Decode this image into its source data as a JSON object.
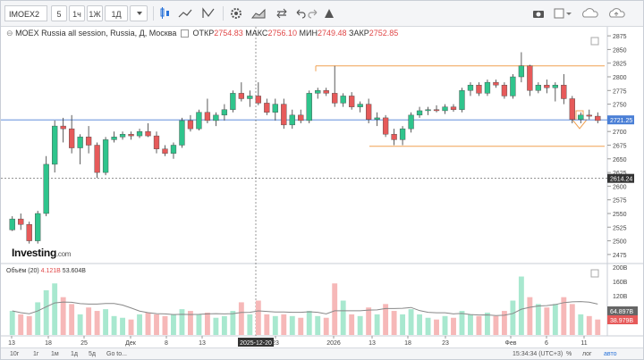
{
  "toolbar": {
    "symbol": "IMOEX2",
    "intervals": [
      "5",
      "1ч",
      "1Ж",
      "1Д"
    ]
  },
  "legend": {
    "title": "MOEX Russia all session, Russia, Д, Москва",
    "open_label": "ОТКР",
    "open": "2754.83",
    "high_label": "МАКС",
    "high": "2756.10",
    "low_label": "МИН",
    "low": "2749.48",
    "close_label": "ЗАКР",
    "close": "2752.85"
  },
  "volume_legend": {
    "label": "Объём (20)",
    "value1": "4.121B",
    "value2": "53.604B"
  },
  "logo": {
    "name": "Investing",
    "suffix": ".com"
  },
  "bottom": {
    "ranges": [
      "10г",
      "1г",
      "1м",
      "1д",
      "5д"
    ],
    "goto": "Go to...",
    "time": "15:34:34 (UTC+3)",
    "percent": "%",
    "log": "лог",
    "auto": "авто"
  },
  "colors": {
    "up": "#2fc48c",
    "down": "#e65a5a",
    "price_line": "#4a7fd6",
    "level": "#f0a050"
  },
  "chart_data": {
    "type": "candlestick",
    "y_ticks": [
      2475,
      2500,
      2525,
      2550,
      2575,
      2600,
      2625,
      2650,
      2675,
      2700,
      2725,
      2750,
      2775,
      2800,
      2825,
      2850,
      2875
    ],
    "ylim": [
      2465,
      2885
    ],
    "current_price": "2721.25",
    "crosshair_price": "2614.24",
    "crosshair_date": "2025-12-20",
    "levels": [
      2820,
      2673
    ],
    "x_labels": [
      "13",
      "18",
      "25",
      "Дек",
      "8",
      "13",
      "2025-12-20",
      "23",
      "2026",
      "13",
      "18",
      "23",
      "Фев",
      "6",
      "11"
    ],
    "volume_ticks": [
      "200B",
      "160B",
      "120B",
      "64.897B",
      "38.979B"
    ],
    "candles": [
      {
        "o": 2520,
        "h": 2545,
        "l": 2518,
        "c": 2540,
        "v": 70
      },
      {
        "o": 2540,
        "h": 2550,
        "l": 2520,
        "c": 2530,
        "v": 60
      },
      {
        "o": 2530,
        "h": 2535,
        "l": 2495,
        "c": 2500,
        "v": 55
      },
      {
        "o": 2500,
        "h": 2555,
        "l": 2495,
        "c": 2550,
        "v": 95
      },
      {
        "o": 2550,
        "h": 2655,
        "l": 2545,
        "c": 2640,
        "v": 130
      },
      {
        "o": 2640,
        "h": 2720,
        "l": 2625,
        "c": 2710,
        "v": 150
      },
      {
        "o": 2710,
        "h": 2725,
        "l": 2680,
        "c": 2705,
        "v": 110
      },
      {
        "o": 2705,
        "h": 2730,
        "l": 2660,
        "c": 2670,
        "v": 90
      },
      {
        "o": 2670,
        "h": 2695,
        "l": 2640,
        "c": 2690,
        "v": 60
      },
      {
        "o": 2690,
        "h": 2710,
        "l": 2660,
        "c": 2675,
        "v": 80
      },
      {
        "o": 2675,
        "h": 2680,
        "l": 2615,
        "c": 2625,
        "v": 70
      },
      {
        "o": 2625,
        "h": 2690,
        "l": 2620,
        "c": 2685,
        "v": 75
      },
      {
        "o": 2685,
        "h": 2700,
        "l": 2680,
        "c": 2690,
        "v": 55
      },
      {
        "o": 2690,
        "h": 2700,
        "l": 2685,
        "c": 2695,
        "v": 50
      },
      {
        "o": 2695,
        "h": 2700,
        "l": 2685,
        "c": 2692,
        "v": 45
      },
      {
        "o": 2692,
        "h": 2705,
        "l": 2688,
        "c": 2700,
        "v": 60
      },
      {
        "o": 2700,
        "h": 2715,
        "l": 2690,
        "c": 2692,
        "v": 65
      },
      {
        "o": 2692,
        "h": 2700,
        "l": 2660,
        "c": 2668,
        "v": 60
      },
      {
        "o": 2668,
        "h": 2675,
        "l": 2655,
        "c": 2660,
        "v": 55
      },
      {
        "o": 2660,
        "h": 2680,
        "l": 2650,
        "c": 2675,
        "v": 60
      },
      {
        "o": 2675,
        "h": 2725,
        "l": 2670,
        "c": 2720,
        "v": 75
      },
      {
        "o": 2720,
        "h": 2730,
        "l": 2700,
        "c": 2705,
        "v": 70
      },
      {
        "o": 2705,
        "h": 2740,
        "l": 2702,
        "c": 2735,
        "v": 60
      },
      {
        "o": 2735,
        "h": 2760,
        "l": 2715,
        "c": 2720,
        "v": 65
      },
      {
        "o": 2720,
        "h": 2735,
        "l": 2710,
        "c": 2730,
        "v": 50
      },
      {
        "o": 2730,
        "h": 2750,
        "l": 2720,
        "c": 2740,
        "v": 55
      },
      {
        "o": 2740,
        "h": 2775,
        "l": 2735,
        "c": 2770,
        "v": 70
      },
      {
        "o": 2770,
        "h": 2790,
        "l": 2755,
        "c": 2760,
        "v": 95
      },
      {
        "o": 2760,
        "h": 2775,
        "l": 2745,
        "c": 2765,
        "v": 60
      },
      {
        "o": 2765,
        "h": 2790,
        "l": 2748,
        "c": 2752,
        "v": 100
      },
      {
        "o": 2752,
        "h": 2760,
        "l": 2730,
        "c": 2735,
        "v": 60
      },
      {
        "o": 2735,
        "h": 2760,
        "l": 2720,
        "c": 2750,
        "v": 55
      },
      {
        "o": 2750,
        "h": 2760,
        "l": 2705,
        "c": 2712,
        "v": 60
      },
      {
        "o": 2712,
        "h": 2740,
        "l": 2705,
        "c": 2730,
        "v": 55
      },
      {
        "o": 2730,
        "h": 2740,
        "l": 2715,
        "c": 2720,
        "v": 50
      },
      {
        "o": 2720,
        "h": 2775,
        "l": 2715,
        "c": 2770,
        "v": 70
      },
      {
        "o": 2770,
        "h": 2780,
        "l": 2760,
        "c": 2775,
        "v": 55
      },
      {
        "o": 2775,
        "h": 2780,
        "l": 2765,
        "c": 2770,
        "v": 50
      },
      {
        "o": 2770,
        "h": 2820,
        "l": 2745,
        "c": 2752,
        "v": 150
      },
      {
        "o": 2752,
        "h": 2770,
        "l": 2745,
        "c": 2765,
        "v": 100
      },
      {
        "o": 2765,
        "h": 2772,
        "l": 2740,
        "c": 2745,
        "v": 60
      },
      {
        "o": 2745,
        "h": 2755,
        "l": 2735,
        "c": 2750,
        "v": 55
      },
      {
        "o": 2750,
        "h": 2760,
        "l": 2715,
        "c": 2722,
        "v": 80
      },
      {
        "o": 2722,
        "h": 2735,
        "l": 2710,
        "c": 2725,
        "v": 60
      },
      {
        "o": 2725,
        "h": 2730,
        "l": 2690,
        "c": 2695,
        "v": 90
      },
      {
        "o": 2695,
        "h": 2705,
        "l": 2675,
        "c": 2685,
        "v": 70
      },
      {
        "o": 2685,
        "h": 2710,
        "l": 2675,
        "c": 2705,
        "v": 60
      },
      {
        "o": 2705,
        "h": 2735,
        "l": 2698,
        "c": 2730,
        "v": 75
      },
      {
        "o": 2730,
        "h": 2745,
        "l": 2725,
        "c": 2738,
        "v": 60
      },
      {
        "o": 2738,
        "h": 2745,
        "l": 2730,
        "c": 2740,
        "v": 50
      },
      {
        "o": 2740,
        "h": 2748,
        "l": 2735,
        "c": 2738,
        "v": 45
      },
      {
        "o": 2738,
        "h": 2750,
        "l": 2732,
        "c": 2745,
        "v": 55
      },
      {
        "o": 2745,
        "h": 2750,
        "l": 2736,
        "c": 2740,
        "v": 50
      },
      {
        "o": 2740,
        "h": 2780,
        "l": 2735,
        "c": 2775,
        "v": 70
      },
      {
        "o": 2775,
        "h": 2790,
        "l": 2765,
        "c": 2785,
        "v": 60
      },
      {
        "o": 2785,
        "h": 2790,
        "l": 2765,
        "c": 2770,
        "v": 55
      },
      {
        "o": 2770,
        "h": 2795,
        "l": 2765,
        "c": 2790,
        "v": 65
      },
      {
        "o": 2790,
        "h": 2795,
        "l": 2780,
        "c": 2785,
        "v": 55
      },
      {
        "o": 2785,
        "h": 2790,
        "l": 2760,
        "c": 2765,
        "v": 70
      },
      {
        "o": 2765,
        "h": 2805,
        "l": 2760,
        "c": 2800,
        "v": 100
      },
      {
        "o": 2800,
        "h": 2845,
        "l": 2790,
        "c": 2820,
        "v": 170
      },
      {
        "o": 2820,
        "h": 2822,
        "l": 2765,
        "c": 2775,
        "v": 110
      },
      {
        "o": 2775,
        "h": 2790,
        "l": 2770,
        "c": 2785,
        "v": 90
      },
      {
        "o": 2785,
        "h": 2795,
        "l": 2770,
        "c": 2780,
        "v": 80
      },
      {
        "o": 2780,
        "h": 2790,
        "l": 2755,
        "c": 2785,
        "v": 90
      },
      {
        "o": 2785,
        "h": 2805,
        "l": 2750,
        "c": 2760,
        "v": 110
      },
      {
        "o": 2760,
        "h": 2765,
        "l": 2715,
        "c": 2722,
        "v": 90
      },
      {
        "o": 2722,
        "h": 2735,
        "l": 2715,
        "c": 2730,
        "v": 60
      },
      {
        "o": 2730,
        "h": 2740,
        "l": 2722,
        "c": 2728,
        "v": 55
      },
      {
        "o": 2728,
        "h": 2735,
        "l": 2715,
        "c": 2720,
        "v": 45
      }
    ]
  }
}
